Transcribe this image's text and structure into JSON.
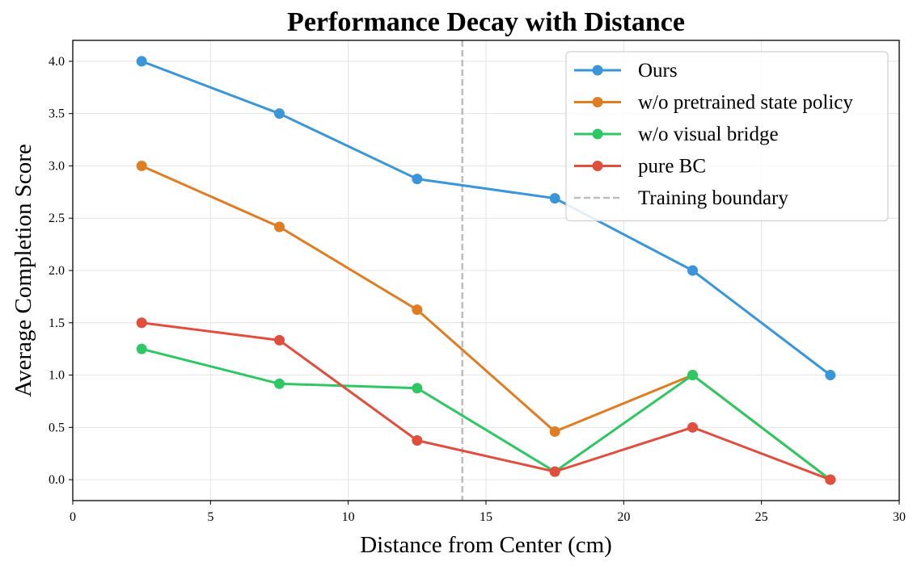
{
  "chart_data": {
    "type": "line",
    "title": "Performance Decay with Distance",
    "xlabel": "Distance from Center (cm)",
    "ylabel": "Average Completion Score",
    "xlim": [
      0,
      30
    ],
    "ylim": [
      -0.2,
      4.2
    ],
    "xticks": [
      0,
      5,
      10,
      15,
      20,
      25,
      30
    ],
    "yticks": [
      0.0,
      0.5,
      1.0,
      1.5,
      2.0,
      2.5,
      3.0,
      3.5,
      4.0
    ],
    "xtick_labels": [
      "0",
      "5",
      "10",
      "15",
      "20",
      "25",
      "30"
    ],
    "ytick_labels": [
      "0.0",
      "0.5",
      "1.0",
      "1.5",
      "2.0",
      "2.5",
      "3.0",
      "3.5",
      "4.0"
    ],
    "grid": true,
    "legend_position": "top-right",
    "x": [
      2.5,
      7.5,
      12.5,
      17.5,
      22.5,
      27.5
    ],
    "series": [
      {
        "name": "Ours",
        "color": "#3a96d9",
        "values": [
          4.0,
          3.5,
          2.875,
          2.69,
          2.0,
          1.0
        ]
      },
      {
        "name": "w/o pretrained state policy",
        "color": "#e07d23",
        "values": [
          3.0,
          2.417,
          1.625,
          0.46,
          1.0,
          0.0
        ]
      },
      {
        "name": "w/o visual bridge",
        "color": "#2ec764",
        "values": [
          1.25,
          0.917,
          0.875,
          0.077,
          1.0,
          0.0
        ]
      },
      {
        "name": "pure BC",
        "color": "#e04e3e",
        "values": [
          1.5,
          1.333,
          0.375,
          0.077,
          0.5,
          0.0
        ]
      }
    ],
    "reference_line": {
      "name": "Training boundary",
      "x": 14.14,
      "color": "#bdbdbd",
      "style": "dashed"
    }
  }
}
